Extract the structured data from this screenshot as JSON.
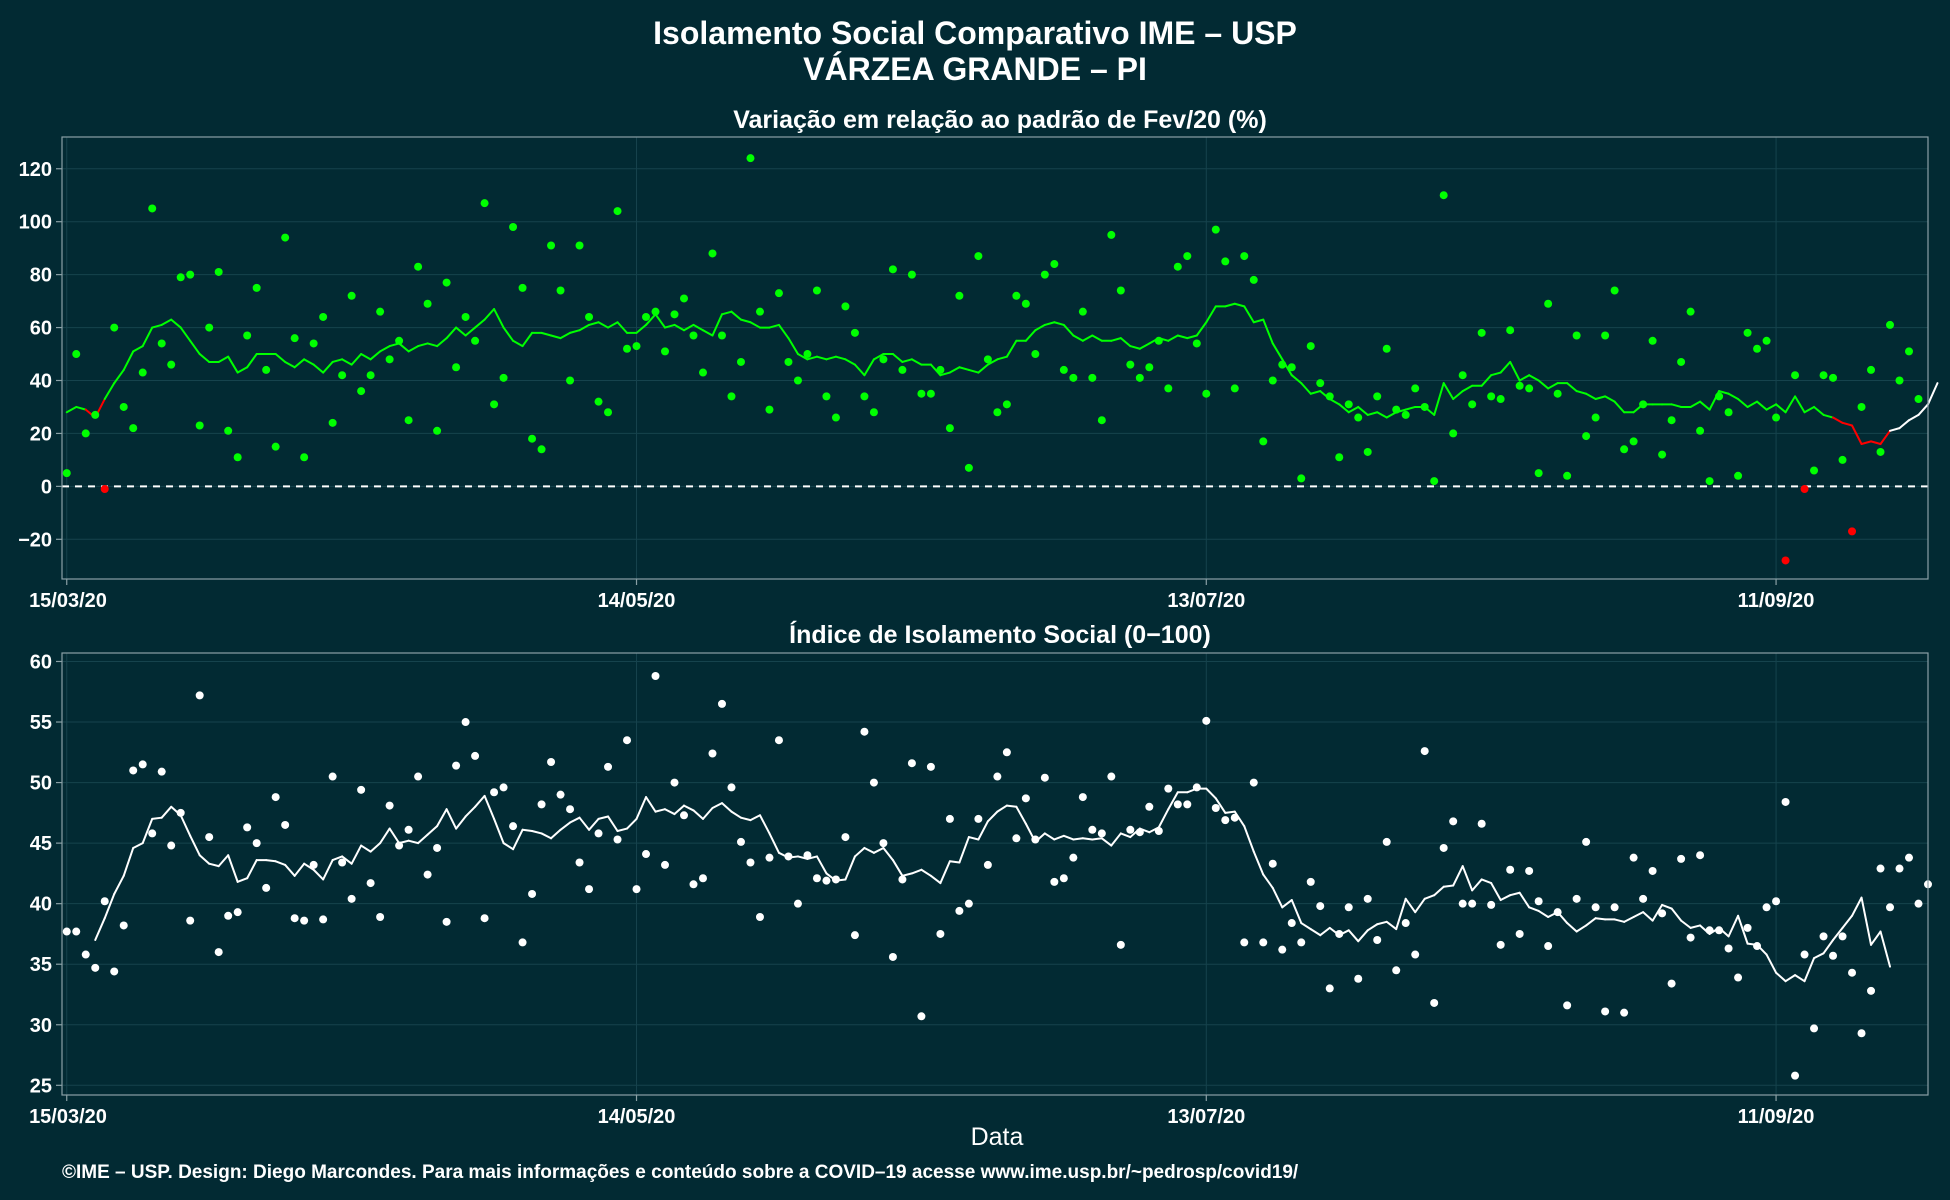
{
  "title_line1": "Isolamento Social Comparativo IME – USP",
  "title_line2": "VÁRZEA GRANDE – PI",
  "footer": "©IME – USP. Design: Diego Marcondes. Para mais informações e conteúdo sobre a COVID–19 acesse www.ime.usp.br/~pedrosp/covid19/",
  "colors": {
    "background": "#022a33",
    "text": "#ffffff",
    "above_zero": "#00ff00",
    "below_zero": "#ff0000",
    "index_points": "#ffffff",
    "grid": "#16434d",
    "frame": "#8aa0a6"
  },
  "chart_data": [
    {
      "type": "scatter",
      "title": "Variação em relação ao padrão de Fev/20 (%)",
      "xlabel": "",
      "x_ticks": [
        "15/03/20",
        "14/05/20",
        "13/07/20",
        "11/09/20"
      ],
      "x_tick_day_index": [
        0,
        60,
        120,
        180
      ],
      "y_ticks": [
        -20,
        0,
        20,
        40,
        60,
        80,
        100,
        120
      ],
      "ylim": [
        -35,
        132
      ],
      "xlim_day_index": [
        -0.5,
        196
      ],
      "reference_line": 0,
      "grid": true,
      "series": [
        {
          "kind": "points",
          "values": [
            5,
            50,
            20,
            27,
            -1,
            60,
            30,
            22,
            43,
            105,
            54,
            46,
            79,
            80,
            23,
            60,
            81,
            21,
            11,
            57,
            75,
            44,
            15,
            94,
            56,
            11,
            54,
            64,
            24,
            42,
            72,
            36,
            42,
            66,
            48,
            55,
            25,
            83,
            69,
            21,
            77,
            45,
            64,
            55,
            107,
            31,
            41,
            98,
            75,
            18,
            14,
            91,
            74,
            40,
            91,
            64,
            32,
            28,
            104,
            52,
            53,
            64,
            66,
            51,
            65,
            71,
            57,
            43,
            88,
            57,
            34,
            47,
            124,
            66,
            29,
            73,
            47,
            40,
            50,
            74,
            34,
            26,
            68,
            58,
            34,
            28,
            48,
            82,
            44,
            80,
            35,
            35,
            44,
            22,
            72,
            7,
            87,
            48,
            28,
            31,
            72,
            69,
            50,
            80,
            84,
            44,
            41,
            66,
            41,
            25,
            95,
            74,
            46,
            41,
            45,
            55,
            37,
            83,
            87,
            54,
            35,
            97,
            85,
            37,
            87,
            78,
            17,
            40,
            46,
            45,
            3,
            53,
            39,
            34,
            11,
            31,
            26,
            13,
            34,
            52,
            29,
            27,
            37,
            30,
            2,
            110,
            20,
            42,
            31,
            58,
            34,
            33,
            59,
            38,
            37,
            5,
            69,
            35,
            4,
            57,
            19,
            26,
            57,
            74,
            14,
            17,
            31,
            55,
            12,
            25,
            47,
            66,
            21,
            2,
            34,
            28,
            4,
            58,
            52,
            55,
            26,
            -28,
            42,
            -1,
            6,
            42,
            41,
            10,
            -17,
            30,
            44,
            13,
            61,
            40,
            51,
            33
          ]
        },
        {
          "kind": "moving_average",
          "values": [
            28,
            30,
            29,
            26,
            33,
            39,
            44,
            51,
            53,
            60,
            61,
            63,
            60,
            55,
            50,
            47,
            47,
            49,
            43,
            45,
            50,
            50,
            50,
            47,
            45,
            48,
            46,
            43,
            47,
            48,
            46,
            50,
            48,
            51,
            53,
            54,
            51,
            53,
            54,
            53,
            56,
            60,
            57,
            60,
            63,
            67,
            60,
            55,
            53,
            58,
            58,
            57,
            56,
            58,
            59,
            61,
            62,
            60,
            62,
            58,
            58,
            61,
            65,
            60,
            61,
            59,
            61,
            59,
            57,
            65,
            66,
            63,
            62,
            60,
            60,
            61,
            56,
            50,
            48,
            49,
            48,
            49,
            48,
            46,
            42,
            48,
            50,
            50,
            47,
            48,
            46,
            46,
            42,
            43,
            45,
            44,
            43,
            46,
            48,
            49,
            55,
            55,
            59,
            61,
            62,
            61,
            57,
            55,
            57,
            55,
            55,
            56,
            53,
            52,
            54,
            56,
            55,
            57,
            56,
            57,
            62,
            68,
            68,
            69,
            68,
            62,
            63,
            54,
            48,
            42,
            39,
            35,
            36,
            33,
            31,
            28,
            30,
            27,
            28,
            26,
            28,
            29,
            30,
            30,
            27,
            39,
            33,
            36,
            38,
            38,
            42,
            43,
            47,
            40,
            42,
            40,
            37,
            39,
            39,
            36,
            35,
            33,
            34,
            32,
            28,
            28,
            31,
            31,
            31,
            31,
            30,
            30,
            32,
            29,
            36,
            35,
            33,
            30,
            32,
            29,
            31,
            28,
            34,
            28,
            30,
            27,
            26,
            24,
            23,
            16,
            17,
            16,
            21,
            22,
            25,
            27,
            31,
            39
          ]
        }
      ]
    },
    {
      "type": "scatter",
      "title": "Índice de Isolamento Social (0−100)",
      "xlabel": "Data",
      "x_ticks": [
        "15/03/20",
        "14/05/20",
        "13/07/20",
        "11/09/20"
      ],
      "x_tick_day_index": [
        0,
        60,
        120,
        180
      ],
      "y_ticks": [
        25,
        30,
        35,
        40,
        45,
        50,
        55,
        60
      ],
      "ylim": [
        24.2,
        60.7
      ],
      "xlim_day_index": [
        -0.5,
        196
      ],
      "grid": true,
      "series": [
        {
          "kind": "points",
          "values": [
            37.7,
            37.7,
            35.8,
            34.7,
            40.2,
            34.4,
            38.2,
            51.0,
            51.5,
            45.8,
            50.9,
            44.8,
            47.5,
            38.6,
            57.2,
            45.5,
            36.0,
            39.0,
            39.3,
            46.3,
            45.0,
            41.3,
            48.8,
            46.5,
            38.8,
            38.6,
            43.2,
            38.7,
            50.5,
            43.4,
            40.4,
            49.4,
            41.7,
            38.9,
            48.1,
            44.8,
            46.1,
            50.5,
            42.4,
            44.6,
            38.5,
            51.4,
            55.0,
            52.2,
            38.8,
            49.2,
            49.6,
            46.4,
            36.8,
            40.8,
            48.2,
            51.7,
            49.0,
            47.8,
            43.4,
            41.2,
            45.8,
            51.3,
            45.3,
            53.5,
            41.2,
            44.1,
            58.8,
            43.2,
            50.0,
            47.3,
            41.6,
            42.1,
            52.4,
            56.5,
            49.6,
            45.1,
            43.4,
            38.9,
            43.8,
            53.5,
            43.9,
            40.0,
            44.0,
            42.1,
            41.9,
            42.0,
            45.5,
            37.4,
            54.2,
            50.0,
            45.0,
            35.6,
            42.0,
            51.6,
            30.7,
            51.3,
            37.5,
            47.0,
            39.4,
            40.0,
            47.0,
            43.2,
            50.5,
            52.5,
            45.4,
            48.7,
            45.3,
            50.4,
            41.8,
            42.1,
            43.8,
            48.8,
            46.1,
            45.8,
            50.5,
            36.6,
            46.1,
            45.9,
            48.0,
            46.0,
            49.5,
            48.2,
            48.2,
            49.6,
            55.1,
            47.9,
            46.9,
            47.1,
            36.8,
            50.0,
            36.8,
            43.3,
            36.2,
            38.4,
            36.8,
            41.8,
            39.8,
            33.0,
            37.5,
            39.7,
            33.8,
            40.4,
            37.0,
            45.1,
            34.5,
            38.4,
            35.8,
            52.6,
            31.8,
            44.6,
            46.8,
            40.0,
            40.0,
            46.6,
            39.9,
            36.6,
            42.8,
            37.5,
            42.7,
            40.2,
            36.5,
            39.3,
            31.6,
            40.4,
            45.1,
            39.7,
            31.1,
            39.7,
            31.0,
            43.8,
            40.4,
            42.7,
            39.2,
            33.4,
            43.7,
            37.2,
            44.0,
            37.8,
            37.8,
            36.3,
            33.9,
            38.0,
            36.5,
            39.7,
            40.2,
            48.4,
            25.8,
            35.8,
            29.7,
            37.3,
            35.7,
            37.3,
            34.3,
            29.3,
            32.8,
            42.9,
            39.7,
            42.9,
            43.8,
            40.0,
            41.6
          ]
        },
        {
          "kind": "moving_average",
          "values": [
            null,
            null,
            null,
            37.0,
            38.8,
            40.8,
            42.3,
            44.6,
            45.0,
            47.0,
            47.1,
            48.0,
            47.3,
            45.6,
            44.0,
            43.3,
            43.1,
            44.0,
            41.8,
            42.1,
            43.6,
            43.6,
            43.5,
            43.2,
            42.3,
            43.3,
            42.8,
            42.0,
            43.6,
            43.9,
            43.3,
            44.8,
            44.3,
            45.0,
            46.2,
            45.0,
            45.2,
            45.0,
            45.7,
            46.4,
            47.8,
            46.2,
            47.2,
            48.0,
            48.9,
            47.0,
            45.0,
            44.5,
            46.1,
            46.0,
            45.8,
            45.4,
            46.1,
            46.7,
            47.1,
            46.1,
            47.0,
            47.2,
            46.0,
            46.2,
            47.0,
            48.8,
            47.6,
            47.8,
            47.4,
            48.1,
            47.7,
            47.0,
            47.9,
            48.3,
            47.6,
            47.1,
            46.9,
            47.3,
            45.8,
            44.2,
            43.8,
            43.9,
            43.7,
            43.9,
            42.5,
            41.9,
            42.0,
            43.9,
            44.6,
            44.2,
            44.6,
            43.6,
            42.3,
            42.5,
            42.8,
            42.3,
            41.7,
            43.5,
            43.4,
            45.5,
            45.3,
            46.8,
            47.6,
            48.1,
            48.0,
            46.6,
            45.1,
            45.8,
            45.3,
            45.6,
            45.3,
            45.4,
            45.3,
            45.4,
            44.8,
            45.8,
            45.5,
            46.2,
            45.9,
            46.3,
            47.8,
            49.2,
            49.2,
            49.5,
            49.5,
            48.7,
            47.5,
            47.6,
            46.4,
            44.3,
            42.4,
            41.3,
            39.7,
            40.3,
            38.4,
            37.9,
            37.4,
            38.0,
            37.4,
            37.8,
            36.9,
            37.8,
            38.3,
            38.5,
            37.9,
            40.4,
            39.3,
            40.4,
            40.7,
            41.4,
            41.5,
            43.1,
            41.1,
            42.0,
            41.7,
            40.3,
            40.7,
            40.9,
            39.7,
            39.4,
            38.9,
            39.3,
            38.4,
            37.7,
            38.2,
            38.8,
            38.7,
            38.7,
            38.5,
            38.9,
            39.3,
            38.6,
            39.9,
            39.6,
            38.6,
            38.0,
            38.2,
            37.5,
            38.0,
            37.3,
            39.0,
            36.7,
            36.6,
            35.8,
            34.3,
            33.6,
            34.1,
            33.6,
            35.5,
            35.9,
            37.0,
            38.0,
            39.0,
            40.5,
            36.6,
            37.7,
            34.8
          ]
        }
      ]
    }
  ]
}
